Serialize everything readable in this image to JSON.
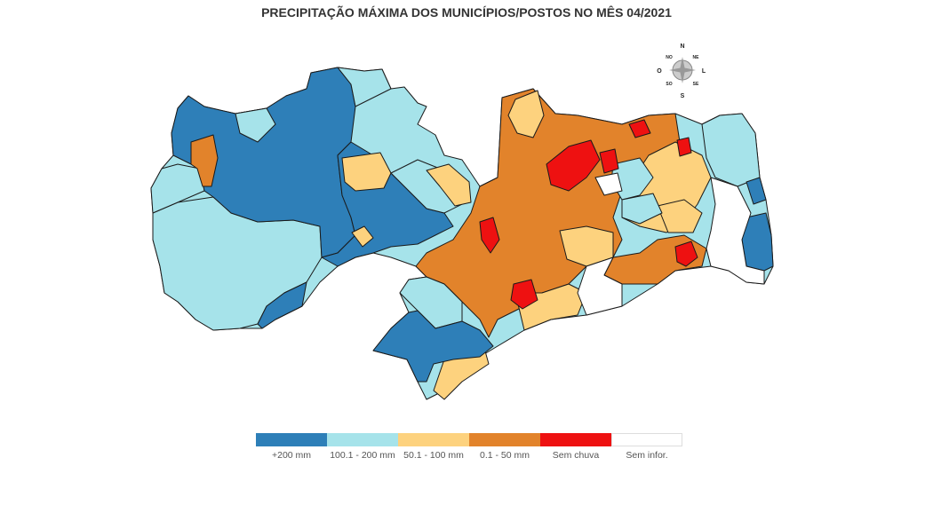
{
  "title": "PRECIPITAÇÃO MÁXIMA DOS MUNICÍPIOS/POSTOS NO MÊS 04/2021",
  "colors": {
    "very_high": "#2e7fb8",
    "high": "#a6e3ea",
    "medium": "#fdd27e",
    "low": "#e2832b",
    "none": "#ee1111",
    "no_info": "#ffffff",
    "border": "#1a1a1a"
  },
  "legend": [
    {
      "label": "+200 mm",
      "color": "#2e7fb8"
    },
    {
      "label": "100.1 - 200 mm",
      "color": "#a6e3ea"
    },
    {
      "label": "50.1 - 100 mm",
      "color": "#fdd27e"
    },
    {
      "label": "0.1 - 50 mm",
      "color": "#e2832b"
    },
    {
      "label": "Sem chuva",
      "color": "#ee1111"
    },
    {
      "label": "Sem infor.",
      "color": "#ffffff"
    }
  ],
  "compass": {
    "n": "N",
    "s": "S",
    "l": "L",
    "o": "O",
    "ne": "NE",
    "no": "NO",
    "se": "SE",
    "so": "SO"
  }
}
